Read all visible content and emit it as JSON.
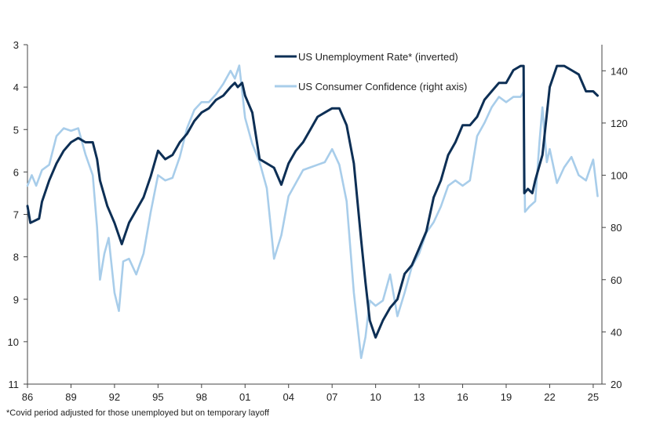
{
  "chart_data": {
    "type": "line",
    "x_tick_labels": [
      "86",
      "89",
      "92",
      "95",
      "98",
      "01",
      "04",
      "07",
      "10",
      "13",
      "16",
      "19",
      "22",
      "25"
    ],
    "x_range": [
      1986,
      2025.6
    ],
    "y_left": {
      "ticks": [
        3,
        4,
        5,
        6,
        7,
        8,
        9,
        10,
        11
      ],
      "range": [
        3,
        11
      ],
      "inverted": true
    },
    "y_right": {
      "ticks": [
        20,
        40,
        60,
        80,
        100,
        120,
        140
      ],
      "range": [
        20,
        150
      ]
    },
    "grid": false,
    "legend_position": "top-center",
    "series": [
      {
        "name": "US Unemployment Rate* (inverted)",
        "axis": "left",
        "color": "#0d2f55",
        "points": [
          [
            1986.0,
            6.8
          ],
          [
            1986.2,
            7.2
          ],
          [
            1986.8,
            7.1
          ],
          [
            1987.0,
            6.7
          ],
          [
            1987.5,
            6.2
          ],
          [
            1988.0,
            5.8
          ],
          [
            1988.5,
            5.5
          ],
          [
            1989.0,
            5.3
          ],
          [
            1989.5,
            5.2
          ],
          [
            1990.0,
            5.3
          ],
          [
            1990.5,
            5.3
          ],
          [
            1990.8,
            5.7
          ],
          [
            1991.0,
            6.2
          ],
          [
            1991.5,
            6.8
          ],
          [
            1992.0,
            7.2
          ],
          [
            1992.5,
            7.7
          ],
          [
            1993.0,
            7.2
          ],
          [
            1993.5,
            6.9
          ],
          [
            1994.0,
            6.6
          ],
          [
            1994.5,
            6.1
          ],
          [
            1995.0,
            5.5
          ],
          [
            1995.5,
            5.7
          ],
          [
            1996.0,
            5.6
          ],
          [
            1996.5,
            5.3
          ],
          [
            1997.0,
            5.1
          ],
          [
            1997.5,
            4.8
          ],
          [
            1998.0,
            4.6
          ],
          [
            1998.5,
            4.5
          ],
          [
            1999.0,
            4.3
          ],
          [
            1999.5,
            4.2
          ],
          [
            2000.0,
            4.0
          ],
          [
            2000.3,
            3.9
          ],
          [
            2000.5,
            4.0
          ],
          [
            2000.8,
            3.9
          ],
          [
            2001.0,
            4.2
          ],
          [
            2001.5,
            4.6
          ],
          [
            2002.0,
            5.7
          ],
          [
            2002.5,
            5.8
          ],
          [
            2003.0,
            5.9
          ],
          [
            2003.5,
            6.3
          ],
          [
            2004.0,
            5.8
          ],
          [
            2004.5,
            5.5
          ],
          [
            2005.0,
            5.3
          ],
          [
            2005.5,
            5.0
          ],
          [
            2006.0,
            4.7
          ],
          [
            2006.5,
            4.6
          ],
          [
            2007.0,
            4.5
          ],
          [
            2007.5,
            4.5
          ],
          [
            2008.0,
            4.9
          ],
          [
            2008.5,
            5.8
          ],
          [
            2009.0,
            7.6
          ],
          [
            2009.3,
            8.6
          ],
          [
            2009.6,
            9.5
          ],
          [
            2010.0,
            9.9
          ],
          [
            2010.5,
            9.5
          ],
          [
            2011.0,
            9.2
          ],
          [
            2011.5,
            9.0
          ],
          [
            2012.0,
            8.4
          ],
          [
            2012.5,
            8.2
          ],
          [
            2013.0,
            7.8
          ],
          [
            2013.5,
            7.4
          ],
          [
            2014.0,
            6.6
          ],
          [
            2014.5,
            6.2
          ],
          [
            2015.0,
            5.6
          ],
          [
            2015.5,
            5.3
          ],
          [
            2016.0,
            4.9
          ],
          [
            2016.5,
            4.9
          ],
          [
            2017.0,
            4.7
          ],
          [
            2017.5,
            4.3
          ],
          [
            2018.0,
            4.1
          ],
          [
            2018.5,
            3.9
          ],
          [
            2019.0,
            3.9
          ],
          [
            2019.5,
            3.6
          ],
          [
            2020.0,
            3.5
          ],
          [
            2020.2,
            3.5
          ],
          [
            2020.25,
            6.5
          ],
          [
            2020.5,
            6.4
          ],
          [
            2020.8,
            6.5
          ],
          [
            2021.0,
            6.2
          ],
          [
            2021.5,
            5.6
          ],
          [
            2022.0,
            4.0
          ],
          [
            2022.5,
            3.5
          ],
          [
            2023.0,
            3.5
          ],
          [
            2023.5,
            3.6
          ],
          [
            2024.0,
            3.7
          ],
          [
            2024.5,
            4.1
          ],
          [
            2025.0,
            4.1
          ],
          [
            2025.3,
            4.2
          ]
        ]
      },
      {
        "name": "US Consumer Confidence (right axis)",
        "axis": "right",
        "color": "#a8cdea",
        "points": [
          [
            1986.0,
            96
          ],
          [
            1986.3,
            100
          ],
          [
            1986.6,
            96
          ],
          [
            1987.0,
            102
          ],
          [
            1987.5,
            104
          ],
          [
            1988.0,
            115
          ],
          [
            1988.5,
            118
          ],
          [
            1989.0,
            117
          ],
          [
            1989.5,
            118
          ],
          [
            1990.0,
            108
          ],
          [
            1990.5,
            100
          ],
          [
            1990.8,
            80
          ],
          [
            1991.0,
            60
          ],
          [
            1991.3,
            70
          ],
          [
            1991.6,
            76
          ],
          [
            1992.0,
            55
          ],
          [
            1992.3,
            48
          ],
          [
            1992.6,
            67
          ],
          [
            1993.0,
            68
          ],
          [
            1993.5,
            62
          ],
          [
            1994.0,
            70
          ],
          [
            1994.5,
            86
          ],
          [
            1995.0,
            100
          ],
          [
            1995.5,
            98
          ],
          [
            1996.0,
            99
          ],
          [
            1996.5,
            107
          ],
          [
            1997.0,
            118
          ],
          [
            1997.5,
            125
          ],
          [
            1998.0,
            128
          ],
          [
            1998.5,
            128
          ],
          [
            1999.0,
            131
          ],
          [
            1999.5,
            135
          ],
          [
            2000.0,
            140
          ],
          [
            2000.3,
            137
          ],
          [
            2000.6,
            142
          ],
          [
            2001.0,
            122
          ],
          [
            2001.5,
            112
          ],
          [
            2002.0,
            105
          ],
          [
            2002.5,
            95
          ],
          [
            2003.0,
            68
          ],
          [
            2003.5,
            77
          ],
          [
            2004.0,
            92
          ],
          [
            2004.5,
            97
          ],
          [
            2005.0,
            102
          ],
          [
            2005.5,
            103
          ],
          [
            2006.0,
            104
          ],
          [
            2006.5,
            105
          ],
          [
            2007.0,
            110
          ],
          [
            2007.5,
            104
          ],
          [
            2008.0,
            90
          ],
          [
            2008.5,
            55
          ],
          [
            2009.0,
            30
          ],
          [
            2009.3,
            38
          ],
          [
            2009.6,
            52
          ],
          [
            2010.0,
            50
          ],
          [
            2010.5,
            52
          ],
          [
            2011.0,
            62
          ],
          [
            2011.5,
            46
          ],
          [
            2012.0,
            55
          ],
          [
            2012.5,
            65
          ],
          [
            2013.0,
            70
          ],
          [
            2013.5,
            78
          ],
          [
            2014.0,
            82
          ],
          [
            2014.5,
            88
          ],
          [
            2015.0,
            96
          ],
          [
            2015.5,
            98
          ],
          [
            2016.0,
            96
          ],
          [
            2016.5,
            98
          ],
          [
            2017.0,
            115
          ],
          [
            2017.5,
            120
          ],
          [
            2018.0,
            126
          ],
          [
            2018.5,
            130
          ],
          [
            2019.0,
            128
          ],
          [
            2019.5,
            130
          ],
          [
            2020.0,
            130
          ],
          [
            2020.2,
            132
          ],
          [
            2020.3,
            86
          ],
          [
            2020.6,
            88
          ],
          [
            2021.0,
            90
          ],
          [
            2021.3,
            113
          ],
          [
            2021.5,
            126
          ],
          [
            2021.8,
            105
          ],
          [
            2022.0,
            110
          ],
          [
            2022.5,
            97
          ],
          [
            2023.0,
            103
          ],
          [
            2023.5,
            107
          ],
          [
            2024.0,
            100
          ],
          [
            2024.5,
            98
          ],
          [
            2025.0,
            106
          ],
          [
            2025.3,
            92
          ]
        ]
      }
    ],
    "footnote": "*Covid period adjusted for those unemployed but on temporary layoff"
  }
}
